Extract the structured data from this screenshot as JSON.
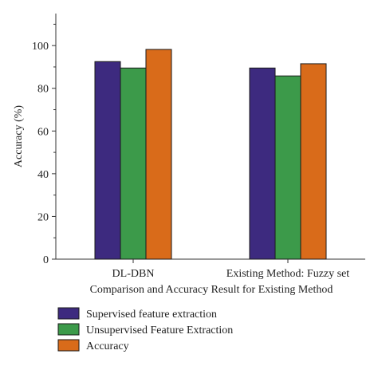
{
  "chart_data": {
    "type": "bar",
    "title": "",
    "xlabel": "Comparison and Accuracy Result for Existing Method",
    "ylabel": "Accuracy (%)",
    "ylim": [
      0,
      115
    ],
    "yticks": [
      0,
      20,
      40,
      60,
      80,
      100
    ],
    "categories": [
      "DL-DBN",
      "Existing Method: Fuzzy set"
    ],
    "series": [
      {
        "name": "Supervised feature extraction",
        "values": [
          92.5,
          89.5
        ],
        "color": "#3d2a7f"
      },
      {
        "name": "Unsupervised Feature Extraction",
        "values": [
          89.5,
          85.8
        ],
        "color": "#3c9a4a"
      },
      {
        "name": "Accuracy",
        "values": [
          98.2,
          91.5
        ],
        "color": "#d96b1a"
      }
    ],
    "grid": false,
    "legend_position": "bottom-left"
  }
}
